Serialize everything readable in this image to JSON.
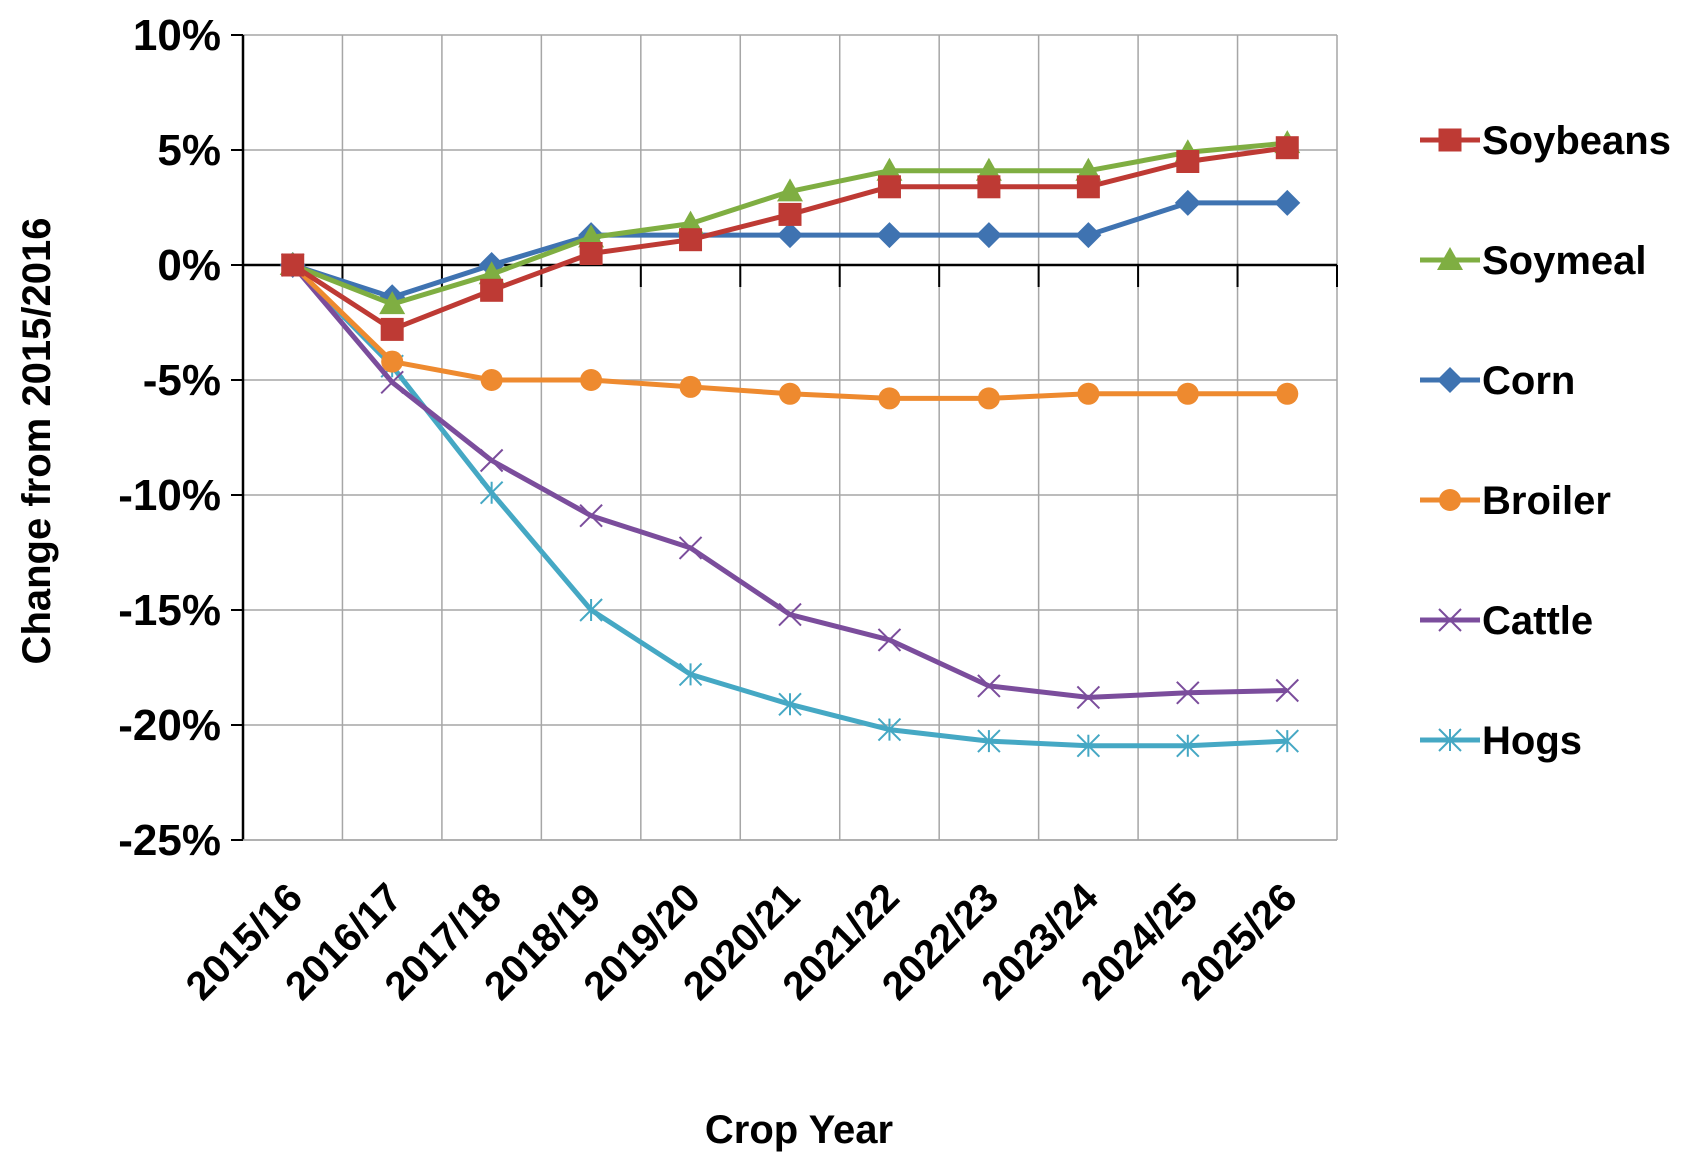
{
  "chart_data": {
    "type": "line",
    "title": "",
    "xlabel": "Crop Year",
    "ylabel": "Change from 2015/2016",
    "ylim": [
      -25,
      10
    ],
    "yticks": [
      10,
      5,
      0,
      -5,
      -10,
      -15,
      -20,
      -25
    ],
    "ytick_labels": [
      "10%",
      "5%",
      "0%",
      "-5%",
      "-10%",
      "-15%",
      "-20%",
      "-25%"
    ],
    "categories": [
      "2015/16",
      "2016/17",
      "2017/18",
      "2018/19",
      "2019/20",
      "2020/21",
      "2021/22",
      "2022/23",
      "2023/24",
      "2024/25",
      "2025/26"
    ],
    "grid": true,
    "legend_position": "right",
    "series": [
      {
        "name": "Soybeans",
        "color": "#be3a34",
        "marker": "square",
        "values": [
          0,
          -2.8,
          -1.1,
          0.5,
          1.1,
          2.2,
          3.4,
          3.4,
          3.4,
          4.5,
          5.1
        ]
      },
      {
        "name": "Soymeal",
        "color": "#7fae42",
        "marker": "triangle",
        "values": [
          0,
          -1.7,
          -0.4,
          1.2,
          1.8,
          3.2,
          4.1,
          4.1,
          4.1,
          4.9,
          5.3
        ]
      },
      {
        "name": "Corn",
        "color": "#3f73b1",
        "marker": "diamond",
        "values": [
          0,
          -1.4,
          0,
          1.3,
          1.3,
          1.3,
          1.3,
          1.3,
          1.3,
          2.7,
          2.7
        ]
      },
      {
        "name": "Broiler",
        "color": "#ee8a2f",
        "marker": "circle",
        "values": [
          0,
          -4.2,
          -5.0,
          -5.0,
          -5.3,
          -5.6,
          -5.8,
          -5.8,
          -5.6,
          -5.6,
          -5.6
        ]
      },
      {
        "name": "Cattle",
        "color": "#7b4d9c",
        "marker": "x",
        "values": [
          0,
          -5.1,
          -8.5,
          -10.9,
          -12.3,
          -15.2,
          -16.3,
          -18.3,
          -18.8,
          -18.6,
          -18.5
        ]
      },
      {
        "name": "Hogs",
        "color": "#45a8c4",
        "marker": "star",
        "values": [
          0,
          -4.4,
          -9.9,
          -15.0,
          -17.8,
          -19.1,
          -20.2,
          -20.7,
          -20.9,
          -20.9,
          -20.7
        ]
      }
    ]
  }
}
